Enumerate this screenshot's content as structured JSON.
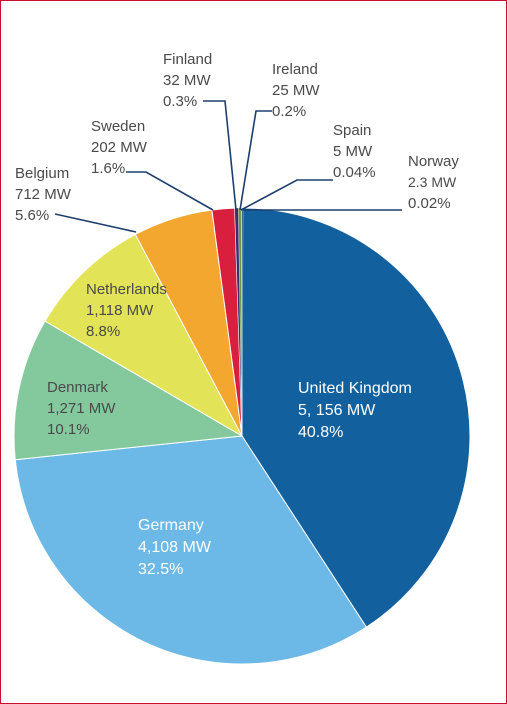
{
  "chart_data": {
    "type": "pie",
    "title": "",
    "unit": "MW",
    "slices": [
      {
        "label": "United Kingdom",
        "value_text": "5, 156 MW",
        "value": 5156,
        "percent_text": "40.8%",
        "percent": 40.8,
        "color": "#12609e"
      },
      {
        "label": "Germany",
        "value_text": "4,108 MW",
        "value": 4108,
        "percent_text": "32.5%",
        "percent": 32.5,
        "color": "#6cb8e6"
      },
      {
        "label": "Denmark",
        "value_text": "1,271 MW",
        "value": 1271,
        "percent_text": "10.1%",
        "percent": 10.1,
        "color": "#84c99d"
      },
      {
        "label": "Netherlands",
        "value_text": "1,118 MW",
        "value": 1118,
        "percent_text": "8.8%",
        "percent": 8.8,
        "color": "#e2e356"
      },
      {
        "label": "Belgium",
        "value_text": "712 MW",
        "value": 712,
        "percent_text": "5.6%",
        "percent": 5.6,
        "color": "#f4a72e"
      },
      {
        "label": "Sweden",
        "value_text": "202 MW",
        "value": 202,
        "percent_text": "1.6%",
        "percent": 1.6,
        "color": "#d8203e"
      },
      {
        "label": "Finland",
        "value_text": "32 MW",
        "value": 32,
        "percent_text": "0.3%",
        "percent": 0.3,
        "color": "#3a2e6e"
      },
      {
        "label": "Ireland",
        "value_text": "25 MW",
        "value": 25,
        "percent_text": "0.2%",
        "percent": 0.2,
        "color": "#6a9a3a"
      },
      {
        "label": "Spain",
        "value_text": "5 MW",
        "value": 5,
        "percent_text": "0.04%",
        "percent": 0.04,
        "color": "#2a8a86"
      },
      {
        "label": "Norway",
        "value_text": "2.3 MW",
        "value": 2.3,
        "percent_text": "0.02%",
        "percent": 0.02,
        "color": "#1f5f8f"
      }
    ]
  }
}
